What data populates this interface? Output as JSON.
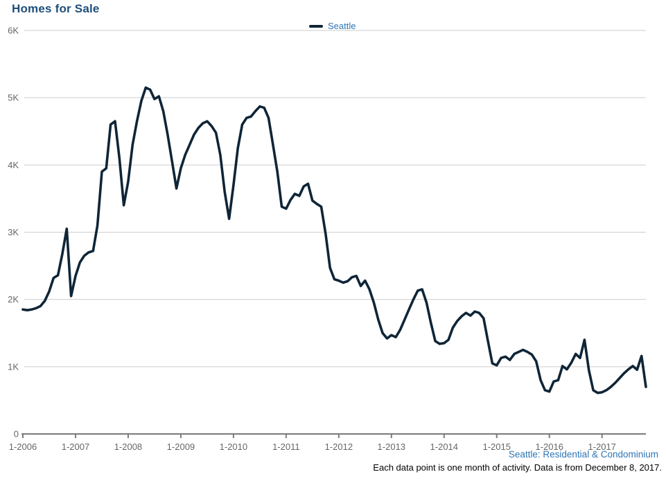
{
  "title": "Homes for Sale",
  "legend": {
    "label": "Seattle",
    "swatch_icon": "line-swatch-icon"
  },
  "footer": {
    "source_link": "Seattle: Residential & Condominium",
    "note": "Each data point is one month of activity. Data is from December 8, 2017."
  },
  "colors": {
    "title_text": "#1F4E79",
    "legend_text": "#2E75B6",
    "series_line": "#0F2537",
    "axis_label": "#666666",
    "gridline": "#CDCDCD",
    "axis_line": "#7A7A7A",
    "source_link": "#2E75B6",
    "note_text": "#000000",
    "background": "#FFFFFF"
  },
  "chart_data": {
    "type": "line",
    "title": "Homes for Sale",
    "interval": "monthly",
    "x_start": "Jan 2006",
    "x_end": "Nov 2017",
    "xlabel": "",
    "ylabel": "",
    "ylim": [
      0,
      6000
    ],
    "y_tick_step": 1000,
    "y_tick_labels": [
      "0",
      "1K",
      "2K",
      "3K",
      "4K",
      "5K",
      "6K"
    ],
    "x_tick_labels": [
      "1-2006",
      "1-2007",
      "1-2008",
      "1-2009",
      "1-2010",
      "1-2011",
      "1-2012",
      "1-2013",
      "1-2014",
      "1-2015",
      "1-2016",
      "1-2017"
    ],
    "x_tick_interval_months": 12,
    "grid": "horizontal",
    "legend_position": "top-center",
    "series": [
      {
        "name": "Seattle",
        "color": "#0F2537",
        "values": [
          1850,
          1840,
          1850,
          1870,
          1900,
          1980,
          2120,
          2320,
          2360,
          2680,
          3050,
          2050,
          2350,
          2550,
          2650,
          2700,
          2720,
          3100,
          3900,
          3950,
          4600,
          4650,
          4100,
          3400,
          3750,
          4300,
          4650,
          4950,
          5150,
          5120,
          4980,
          5020,
          4800,
          4450,
          4050,
          3650,
          3950,
          4150,
          4300,
          4450,
          4550,
          4620,
          4650,
          4580,
          4480,
          4150,
          3600,
          3200,
          3700,
          4250,
          4600,
          4700,
          4720,
          4800,
          4870,
          4850,
          4700,
          4300,
          3900,
          3380,
          3350,
          3480,
          3570,
          3540,
          3680,
          3720,
          3470,
          3420,
          3380,
          2980,
          2470,
          2300,
          2280,
          2250,
          2270,
          2330,
          2350,
          2200,
          2280,
          2150,
          1950,
          1700,
          1500,
          1420,
          1470,
          1440,
          1550,
          1700,
          1850,
          2000,
          2130,
          2150,
          1950,
          1650,
          1380,
          1340,
          1350,
          1400,
          1580,
          1680,
          1750,
          1800,
          1760,
          1820,
          1800,
          1720,
          1380,
          1050,
          1020,
          1130,
          1150,
          1100,
          1190,
          1220,
          1250,
          1220,
          1180,
          1080,
          800,
          650,
          630,
          780,
          800,
          1010,
          960,
          1060,
          1190,
          1130,
          1400,
          950,
          650,
          610,
          620,
          650,
          700,
          760,
          830,
          900,
          960,
          1010,
          955,
          1160,
          700
        ]
      }
    ]
  }
}
